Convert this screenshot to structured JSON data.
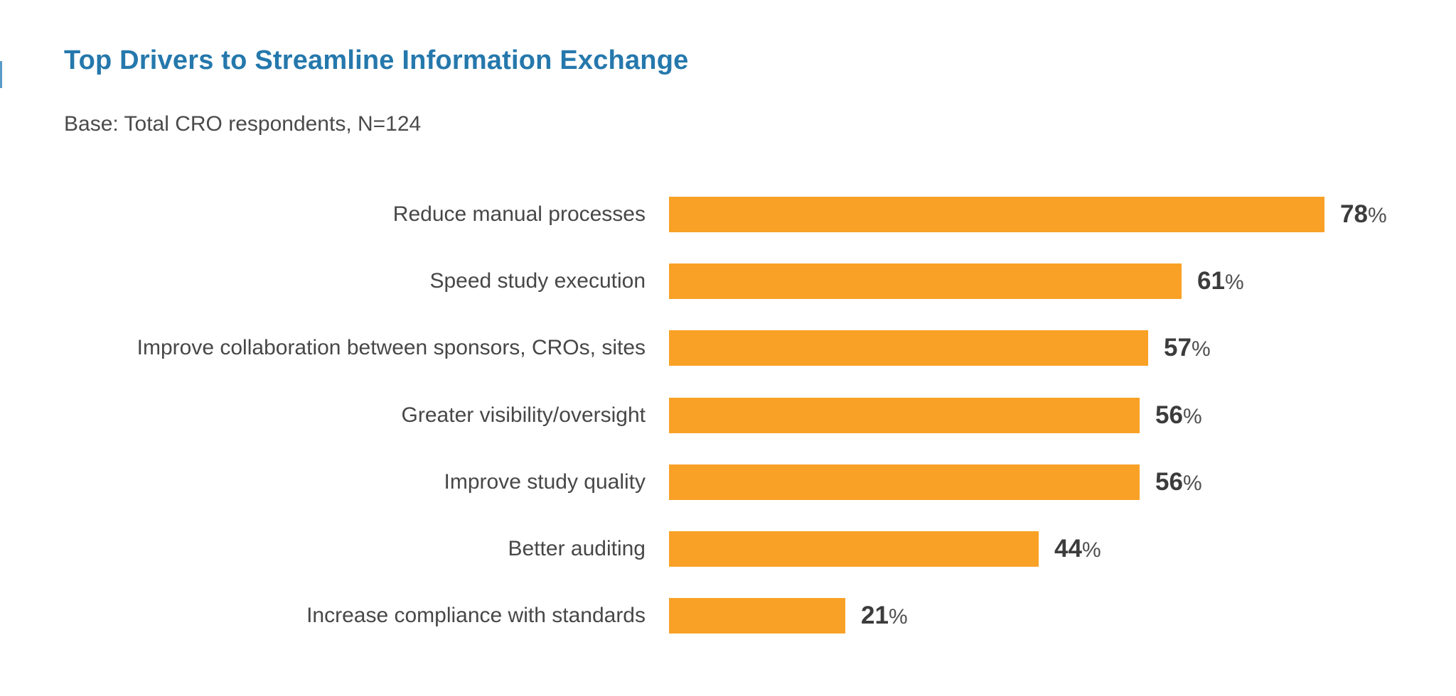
{
  "page": {
    "title": "Top Drivers to Streamline Information Exchange",
    "subtitle": "Base: Total CRO respondents, N=124"
  },
  "chart_data": {
    "type": "bar",
    "orientation": "horizontal",
    "title": "Top Drivers to Streamline Information Exchange",
    "subtitle": "Base: Total CRO respondents, N=124",
    "categories": [
      "Reduce manual processes",
      "Speed study execution",
      "Improve collaboration between sponsors, CROs, sites",
      "Greater visibility/oversight",
      "Improve study quality",
      "Better auditing",
      "Increase compliance with standards"
    ],
    "values": [
      78,
      61,
      57,
      56,
      56,
      44,
      21
    ],
    "unit": "%",
    "xlabel": "",
    "ylabel": "",
    "xlim": [
      0,
      78
    ],
    "grid": false,
    "legend": false,
    "data_labels": "outside-end",
    "bar_color": "#f9a126",
    "title_color": "#2578ac",
    "label_color": "#474747",
    "value_color": "#3c3c3c",
    "percent_sign_color": "#4f4f4f",
    "background_color": "#ffffff"
  }
}
